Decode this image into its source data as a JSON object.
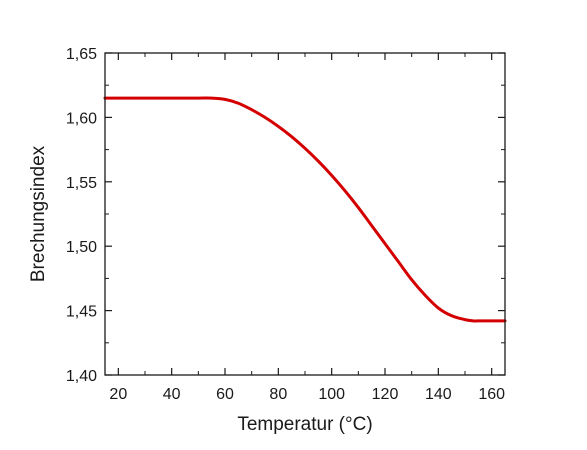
{
  "chart_data": {
    "type": "line",
    "title": "",
    "xlabel": "Temperatur (°C)",
    "ylabel": "Brechungsindex",
    "xlim": [
      15,
      165
    ],
    "ylim": [
      1.4,
      1.65
    ],
    "x_ticks": [
      20,
      40,
      60,
      80,
      100,
      120,
      140,
      160
    ],
    "x_tick_labels": [
      "20",
      "40",
      "60",
      "80",
      "100",
      "120",
      "140",
      "160"
    ],
    "y_ticks": [
      1.4,
      1.45,
      1.5,
      1.55,
      1.6,
      1.65
    ],
    "y_tick_labels": [
      "1,40",
      "1,45",
      "1,50",
      "1,55",
      "1,60",
      "1,65"
    ],
    "grid": false,
    "legend": "none",
    "series": [
      {
        "color": "#d40000",
        "x": [
          15,
          20,
          30,
          40,
          50,
          55,
          60,
          65,
          70,
          75,
          80,
          85,
          90,
          95,
          100,
          105,
          110,
          115,
          120,
          125,
          130,
          135,
          140,
          145,
          150,
          153,
          155,
          160,
          165
        ],
        "y": [
          1.615,
          1.615,
          1.615,
          1.615,
          1.615,
          1.615,
          1.614,
          1.611,
          1.606,
          1.6,
          1.593,
          1.585,
          1.576,
          1.566,
          1.555,
          1.543,
          1.53,
          1.516,
          1.502,
          1.488,
          1.474,
          1.462,
          1.452,
          1.446,
          1.443,
          1.442,
          1.442,
          1.442,
          1.442
        ]
      }
    ]
  }
}
